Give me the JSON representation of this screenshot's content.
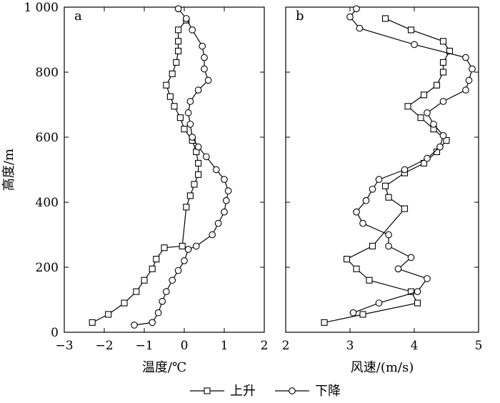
{
  "chart_data": [
    {
      "type": "line",
      "panel_label": "a",
      "xlabel": "温度/℃",
      "ylabel": "高度/m",
      "xlim": [
        -3,
        2
      ],
      "ylim": [
        0,
        1000
      ],
      "x_ticks": [
        -3,
        -2,
        -1,
        0,
        1,
        2
      ],
      "x_tick_labels": [
        "−3",
        "−2",
        "−1",
        "0",
        "1",
        "2"
      ],
      "y_ticks": [
        0,
        200,
        400,
        600,
        800,
        1000
      ],
      "y_tick_labels": [
        "0",
        "200",
        "400",
        "600",
        "800",
        "1 000"
      ],
      "grid": false,
      "series": [
        {
          "name": "上升",
          "marker": "square",
          "points": [
            [
              -2.3,
              30
            ],
            [
              -1.9,
              55
            ],
            [
              -1.5,
              90
            ],
            [
              -1.2,
              125
            ],
            [
              -1.0,
              160
            ],
            [
              -0.8,
              195
            ],
            [
              -0.7,
              225
            ],
            [
              -0.5,
              260
            ],
            [
              -0.05,
              265
            ],
            [
              0.05,
              385
            ],
            [
              0.15,
              420
            ],
            [
              0.25,
              455
            ],
            [
              0.35,
              485
            ],
            [
              0.35,
              520
            ],
            [
              0.3,
              555
            ],
            [
              0.2,
              590
            ],
            [
              0.0,
              625
            ],
            [
              -0.1,
              660
            ],
            [
              -0.25,
              695
            ],
            [
              -0.35,
              725
            ],
            [
              -0.45,
              760
            ],
            [
              -0.3,
              795
            ],
            [
              -0.2,
              830
            ],
            [
              -0.15,
              865
            ],
            [
              -0.15,
              895
            ],
            [
              -0.15,
              930
            ],
            [
              0.05,
              960
            ]
          ]
        },
        {
          "name": "下降",
          "marker": "circle",
          "points": [
            [
              -1.25,
              22
            ],
            [
              -0.8,
              30
            ],
            [
              -0.65,
              60
            ],
            [
              -0.55,
              95
            ],
            [
              -0.45,
              125
            ],
            [
              -0.3,
              160
            ],
            [
              -0.15,
              190
            ],
            [
              0.0,
              220
            ],
            [
              0.1,
              255
            ],
            [
              0.3,
              265
            ],
            [
              0.7,
              300
            ],
            [
              0.85,
              335
            ],
            [
              1.0,
              370
            ],
            [
              1.05,
              405
            ],
            [
              1.1,
              435
            ],
            [
              1.0,
              470
            ],
            [
              0.8,
              500
            ],
            [
              0.55,
              540
            ],
            [
              0.35,
              570
            ],
            [
              0.2,
              600
            ],
            [
              0.15,
              640
            ],
            [
              0.1,
              675
            ],
            [
              0.15,
              710
            ],
            [
              0.35,
              745
            ],
            [
              0.6,
              775
            ],
            [
              0.5,
              810
            ],
            [
              0.5,
              845
            ],
            [
              0.45,
              880
            ],
            [
              0.2,
              930
            ],
            [
              0.05,
              965
            ],
            [
              -0.15,
              995
            ]
          ]
        }
      ]
    },
    {
      "type": "line",
      "panel_label": "b",
      "xlabel": "风速/(m/s)",
      "ylabel": "",
      "xlim": [
        2,
        5
      ],
      "ylim": [
        0,
        1000
      ],
      "x_ticks": [
        2,
        3,
        4,
        5
      ],
      "x_tick_labels": [
        "2",
        "3",
        "4",
        "5"
      ],
      "y_ticks": [
        0,
        200,
        400,
        600,
        800,
        1000
      ],
      "grid": false,
      "series": [
        {
          "name": "上升",
          "marker": "square",
          "points": [
            [
              2.6,
              30
            ],
            [
              3.2,
              55
            ],
            [
              4.05,
              90
            ],
            [
              3.95,
              125
            ],
            [
              3.3,
              160
            ],
            [
              3.1,
              195
            ],
            [
              2.95,
              225
            ],
            [
              3.35,
              265
            ],
            [
              3.85,
              380
            ],
            [
              3.6,
              415
            ],
            [
              3.55,
              450
            ],
            [
              3.85,
              490
            ],
            [
              4.15,
              520
            ],
            [
              4.35,
              555
            ],
            [
              4.5,
              590
            ],
            [
              4.3,
              625
            ],
            [
              4.1,
              660
            ],
            [
              3.9,
              695
            ],
            [
              4.15,
              730
            ],
            [
              4.35,
              760
            ],
            [
              4.45,
              800
            ],
            [
              4.45,
              830
            ],
            [
              4.55,
              865
            ],
            [
              4.45,
              895
            ],
            [
              3.95,
              930
            ],
            [
              3.55,
              965
            ]
          ]
        },
        {
          "name": "下降",
          "marker": "circle",
          "points": [
            [
              3.05,
              60
            ],
            [
              3.45,
              90
            ],
            [
              4.05,
              125
            ],
            [
              4.2,
              165
            ],
            [
              3.75,
              195
            ],
            [
              3.95,
              230
            ],
            [
              3.6,
              265
            ],
            [
              3.6,
              300
            ],
            [
              3.2,
              335
            ],
            [
              3.1,
              370
            ],
            [
              3.25,
              405
            ],
            [
              3.35,
              440
            ],
            [
              3.45,
              470
            ],
            [
              3.85,
              500
            ],
            [
              4.2,
              535
            ],
            [
              4.4,
              570
            ],
            [
              4.45,
              605
            ],
            [
              4.3,
              640
            ],
            [
              4.2,
              675
            ],
            [
              4.45,
              710
            ],
            [
              4.8,
              745
            ],
            [
              4.85,
              775
            ],
            [
              4.9,
              810
            ],
            [
              4.8,
              845
            ],
            [
              4.0,
              885
            ],
            [
              3.15,
              935
            ],
            [
              3.0,
              970
            ],
            [
              3.1,
              995
            ]
          ]
        }
      ]
    }
  ],
  "legend": {
    "position": "bottom-center",
    "items": [
      {
        "label": "上升",
        "marker": "square"
      },
      {
        "label": "下降",
        "marker": "circle"
      }
    ]
  },
  "colors": {
    "line": "#000000",
    "marker_fill": "#ffffff",
    "background": "#ffffff"
  }
}
